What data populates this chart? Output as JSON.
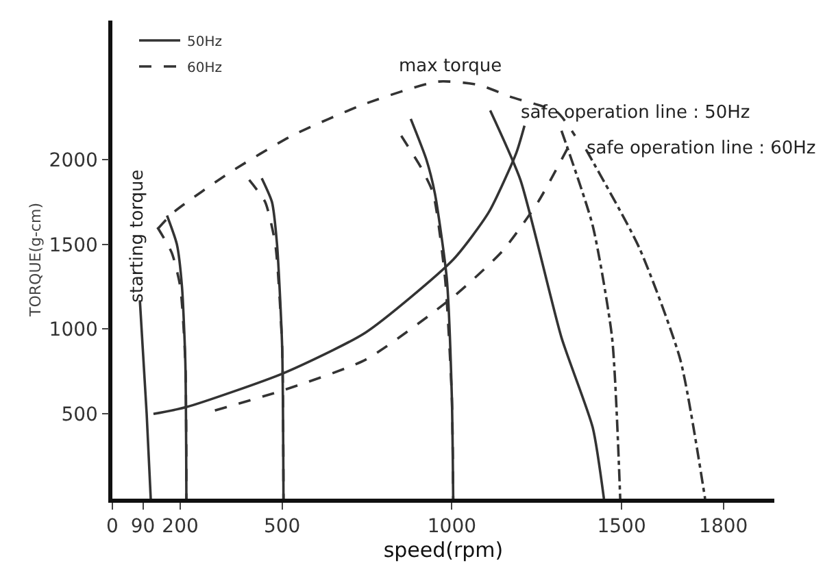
{
  "chart_data": {
    "type": "line",
    "xlabel": "speed(rpm)",
    "ylabel": "TORQUE(g-cm)",
    "xlim": [
      0,
      1950
    ],
    "xticks": [
      0,
      90,
      200,
      500,
      1000,
      1500,
      1800
    ],
    "ylim": [
      0,
      2820
    ],
    "yticks": [
      500,
      1000,
      1500,
      2000
    ],
    "legend": "top left",
    "marker": "none",
    "annotations": [
      "max torque",
      "starting torque",
      "safe operation line : 50Hz",
      "safe operation line : 60Hz"
    ],
    "series": [
      {
        "color": "#333333",
        "line_style": "dashed",
        "x": [
          133,
          181,
          343,
          528,
          746,
          960,
          1080,
          1173,
          1310,
          1363
        ],
        "values": [
          1590,
          1690,
          1920,
          2140,
          2330,
          2460,
          2440,
          2370,
          2280,
          2140
        ]
      },
      {
        "color": "#333333",
        "line_style": "solid",
        "x": [
          121,
          218,
          504,
          746,
          1004,
          1109,
          1190,
          1214
        ],
        "values": [
          500,
          540,
          740,
          980,
          1410,
          1690,
          2040,
          2200
        ]
      },
      {
        "color": "#333333",
        "line_style": "dashed",
        "x": [
          302,
          504,
          746,
          1004,
          1149,
          1254,
          1355
        ],
        "values": [
          520,
          640,
          820,
          1190,
          1460,
          1750,
          2120
        ]
      },
      {
        "color": "#333333",
        "line_style": "solid",
        "x": [
          81,
          101,
          113
        ],
        "values": [
          1170,
          500,
          0
        ]
      },
      {
        "name": "60Hz",
        "color": "#333333",
        "line_style": "dashed",
        "x": [
          133,
          175,
          200,
          215,
          218
        ],
        "values": [
          1600,
          1450,
          1250,
          800,
          0
        ]
      },
      {
        "name": "50Hz",
        "color": "#333333",
        "line_style": "solid",
        "x": [
          161,
          190,
          205,
          215,
          218
        ],
        "values": [
          1670,
          1500,
          1250,
          800,
          0
        ]
      },
      {
        "color": "#333333",
        "line_style": "dashed",
        "x": [
          403,
          450,
          480,
          500,
          504
        ],
        "values": [
          1880,
          1750,
          1500,
          900,
          0
        ]
      },
      {
        "color": "#333333",
        "line_style": "solid",
        "x": [
          440,
          470,
          485,
          500,
          504
        ],
        "values": [
          1890,
          1750,
          1500,
          900,
          0
        ]
      },
      {
        "color": "#333333",
        "line_style": "dashed",
        "x": [
          851,
          910,
          945,
          980,
          1000,
          1004
        ],
        "values": [
          2140,
          1950,
          1800,
          1300,
          600,
          0
        ]
      },
      {
        "color": "#333333",
        "line_style": "solid",
        "x": [
          879,
          925,
          950,
          985,
          1000,
          1004
        ],
        "values": [
          2240,
          2000,
          1800,
          1300,
          600,
          0
        ]
      },
      {
        "color": "#333333",
        "line_style": "solid",
        "x": [
          1113,
          1202,
          1323,
          1415,
          1448
        ],
        "values": [
          2290,
          1880,
          950,
          420,
          0
        ]
      },
      {
        "color": "#333333",
        "line_style": "dashdot",
        "x": [
          1323,
          1415,
          1472,
          1496
        ],
        "values": [
          2170,
          1610,
          950,
          0
        ]
      },
      {
        "color": "#333333",
        "line_style": "dashdot",
        "x": [
          1395,
          1552,
          1673,
          1746
        ],
        "values": [
          2060,
          1480,
          820,
          0
        ]
      }
    ]
  }
}
